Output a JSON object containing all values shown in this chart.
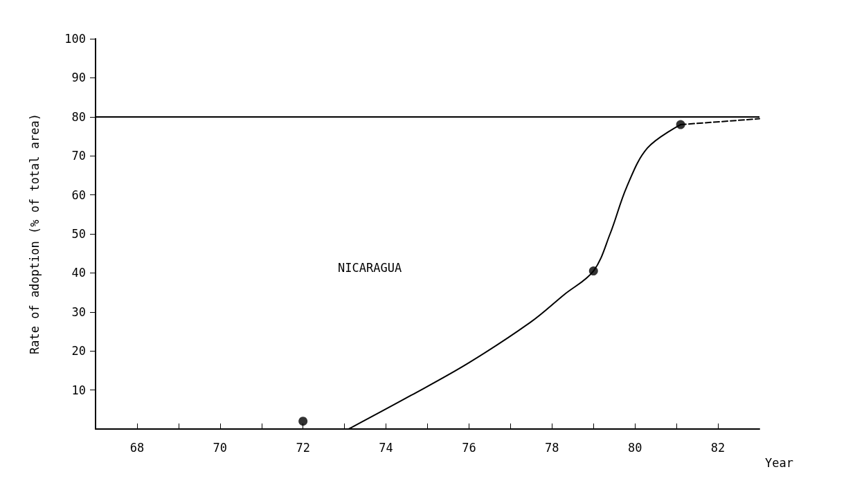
{
  "chart_data": {
    "type": "line",
    "xlabel": "Year",
    "ylabel": "Rate of adoption (% of total area)",
    "annotations": [
      "NICARAGUA"
    ],
    "xlim": [
      67,
      83
    ],
    "xticks": [
      {
        "value": 67,
        "label": null
      },
      68,
      {
        "value": 69,
        "label": null
      },
      70,
      {
        "value": 71,
        "label": null
      },
      72,
      {
        "value": 73,
        "label": null
      },
      74,
      {
        "value": 75,
        "label": null
      },
      76,
      {
        "value": 77,
        "label": null
      },
      78,
      {
        "value": 79,
        "label": null
      },
      80,
      {
        "value": 81,
        "label": null
      },
      82
    ],
    "ylim": [
      0,
      100
    ],
    "yticks": [
      10,
      20,
      30,
      40,
      50,
      60,
      70,
      80,
      90,
      100
    ],
    "grid": false,
    "ref_lines": [
      {
        "axis": "y",
        "value": 80,
        "color": "#000000"
      }
    ],
    "series": [
      {
        "color": "#000000",
        "marker": "none",
        "line_style": "solid",
        "x": [
          73.1,
          74.6,
          76,
          77.5,
          78.3,
          79,
          79.4,
          79.8,
          80.3,
          81.1
        ],
        "values": [
          0,
          8.6,
          17,
          27.5,
          34.5,
          40.5,
          50,
          62,
          72,
          78
        ]
      },
      {
        "type": "line",
        "color": "#000000",
        "marker": "none",
        "line_style": "dashed",
        "x": [
          81.1,
          83
        ],
        "values": [
          78,
          79.5
        ]
      },
      {
        "type": "scatter",
        "color": "#000000",
        "marker": "circle",
        "x": [
          72,
          79,
          81.1
        ],
        "values": [
          2,
          40.5,
          78
        ]
      }
    ]
  }
}
